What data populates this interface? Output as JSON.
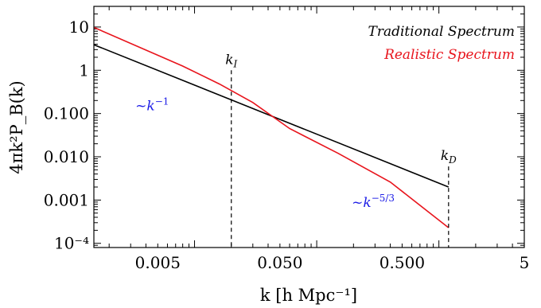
{
  "chart_data": {
    "type": "line",
    "scale": {
      "x": "log",
      "y": "log"
    },
    "xlabel": "k [h Mpc⁻¹]",
    "ylabel": "4πk²P_B(k)",
    "xlim": [
      0.0015,
      5.0
    ],
    "ylim": [
      8e-05,
      30
    ],
    "x_ticks": [
      {
        "value": 0.005,
        "label": "0.005"
      },
      {
        "value": 0.05,
        "label": "0.050"
      },
      {
        "value": 0.5,
        "label": "0.500"
      },
      {
        "value": 5,
        "label": "5"
      }
    ],
    "y_ticks": [
      {
        "value": 10,
        "label": "10"
      },
      {
        "value": 1,
        "label": "1"
      },
      {
        "value": 0.1,
        "label": "0.100"
      },
      {
        "value": 0.01,
        "label": "0.010"
      },
      {
        "value": 0.001,
        "label": "0.001"
      },
      {
        "value": 0.0001,
        "label": "10⁻⁴"
      }
    ],
    "legend": {
      "placement": "top-right"
    },
    "series": [
      {
        "name": "Traditional Spectrum",
        "color": "#000000",
        "x": [
          0.0015,
          1.2
        ],
        "y": [
          3.9,
          0.002
        ]
      },
      {
        "name": "Realistic Spectrum",
        "color": "#e8141c",
        "x": [
          0.0015,
          0.008,
          0.016,
          0.03,
          0.06,
          0.15,
          0.4,
          1.2
        ],
        "y": [
          9.8,
          1.25,
          0.48,
          0.18,
          0.045,
          0.012,
          0.0026,
          0.00023
        ]
      }
    ],
    "vlines": [
      {
        "label_main": "k",
        "label_sub": "I",
        "x": 0.02,
        "y_top": 1.0
      },
      {
        "label_main": "k",
        "label_sub": "D",
        "x": 1.2,
        "y_top": 0.006
      }
    ],
    "annotations": [
      {
        "prefix": "~k",
        "power": "−1",
        "x": 0.0045,
        "y": 0.12,
        "color": "#1a1ae6"
      },
      {
        "prefix": "~k",
        "power": "−5/3",
        "x": 0.29,
        "y": 0.0007,
        "color": "#1a1ae6"
      }
    ]
  }
}
